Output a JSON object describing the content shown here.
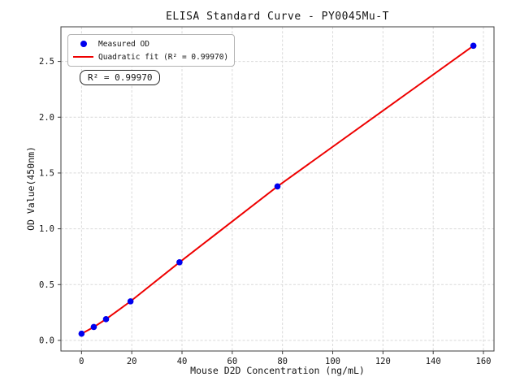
{
  "figure": {
    "title": "ELISA Standard Curve - PY0045Mu-T",
    "annotation": "R² = 0.99970",
    "legend": {
      "items": [
        {
          "label": "Measured OD",
          "marker": "dot"
        },
        {
          "label": "Quadratic fit (R² = 0.99970)",
          "marker": "line"
        }
      ]
    }
  },
  "chart_data": {
    "type": "scatter",
    "title": "ELISA Standard Curve - PY0045Mu-T",
    "xlabel": "Mouse D2D Concentration (ng/mL)",
    "ylabel": "OD Value(450nm)",
    "x": [
      0,
      4.88,
      9.75,
      19.5,
      39,
      78,
      156
    ],
    "series": [
      {
        "name": "Measured OD",
        "type": "scatter",
        "color": "#0000ee",
        "values": [
          0.06,
          0.12,
          0.19,
          0.35,
          0.7,
          1.38,
          2.64
        ]
      },
      {
        "name": "Quadratic fit (R² = 0.99970)",
        "type": "line",
        "color": "#ee0000",
        "r_squared": 0.9997,
        "values": [
          0.06,
          0.12,
          0.19,
          0.35,
          0.7,
          1.38,
          2.64
        ]
      }
    ],
    "xlim": [
      -8.2,
      164.2
    ],
    "ylim": [
      -0.095,
      2.81
    ],
    "xticks": [
      0,
      20,
      40,
      60,
      80,
      100,
      120,
      140,
      160
    ],
    "yticks": [
      0,
      0.5,
      1.0,
      1.5,
      2.0,
      2.5
    ],
    "grid": true,
    "legend_position": "upper left"
  },
  "colors": {
    "marker": "#0000ee",
    "fit_line": "#ee0000",
    "grid": "#d9d9d9",
    "spine": "#3c3c3c",
    "text": "#141414",
    "legend_border": "#b3b3b3",
    "annotation_border": "#222222",
    "background": "#ffffff"
  }
}
